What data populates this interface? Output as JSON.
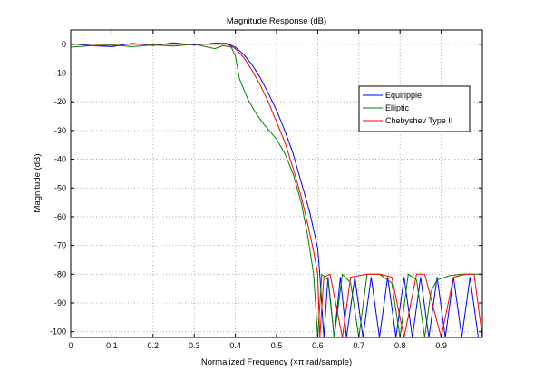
{
  "chart_data": {
    "type": "line",
    "title": "Magnitude Response (dB)",
    "xlabel": "Normalized Frequency  (×π rad/sample)",
    "ylabel": "Magnitude (dB)",
    "xlim": [
      0,
      1
    ],
    "ylim": [
      -102,
      5
    ],
    "grid": true,
    "legend_position": "right",
    "x_ticks": [
      {
        "value": 0,
        "label": "0"
      },
      {
        "value": 0.1,
        "label": "0.1"
      },
      {
        "value": 0.2,
        "label": "0.2"
      },
      {
        "value": 0.3,
        "label": "0.3"
      },
      {
        "value": 0.4,
        "label": "0.4"
      },
      {
        "value": 0.5,
        "label": "0.5"
      },
      {
        "value": 0.6,
        "label": "0.6"
      },
      {
        "value": 0.7,
        "label": "0.7"
      },
      {
        "value": 0.8,
        "label": "0.8"
      },
      {
        "value": 0.9,
        "label": "0.9"
      }
    ],
    "y_ticks": [
      {
        "value": 0,
        "label": "0"
      },
      {
        "value": -10,
        "label": "-10"
      },
      {
        "value": -20,
        "label": "-20"
      },
      {
        "value": -30,
        "label": "-30"
      },
      {
        "value": -40,
        "label": "-40"
      },
      {
        "value": -50,
        "label": "-50"
      },
      {
        "value": -60,
        "label": "-60"
      },
      {
        "value": -70,
        "label": "-70"
      },
      {
        "value": -80,
        "label": "-80"
      },
      {
        "value": -90,
        "label": "-90"
      },
      {
        "value": -100,
        "label": "-100"
      }
    ],
    "series": [
      {
        "name": "Equiripple",
        "color": "#0000ff",
        "x": [
          0,
          0.05,
          0.1,
          0.15,
          0.2,
          0.25,
          0.3,
          0.35,
          0.38,
          0.4,
          0.42,
          0.44,
          0.46,
          0.48,
          0.5,
          0.52,
          0.54,
          0.56,
          0.58,
          0.6,
          0.605,
          0.615,
          0.625,
          0.64,
          0.655,
          0.67,
          0.69,
          0.71,
          0.73,
          0.75,
          0.77,
          0.79,
          0.81,
          0.83,
          0.85,
          0.87,
          0.89,
          0.91,
          0.93,
          0.95,
          0.97,
          0.99,
          1.0
        ],
        "y": [
          0.2,
          -0.5,
          -0.8,
          0.3,
          -0.4,
          0.5,
          -0.3,
          0.4,
          0.3,
          -1,
          -3.5,
          -7,
          -11.5,
          -17,
          -23,
          -30,
          -38,
          -48,
          -58,
          -71,
          -80,
          -102,
          -81,
          -102,
          -81,
          -102,
          -81,
          -102,
          -81,
          -102,
          -81,
          -102,
          -81,
          -102,
          -81,
          -102,
          -81,
          -102,
          -81,
          -102,
          -81,
          -102,
          -102
        ]
      },
      {
        "name": "Elliptic",
        "color": "#008000",
        "x": [
          0,
          0.05,
          0.1,
          0.15,
          0.2,
          0.25,
          0.3,
          0.35,
          0.37,
          0.39,
          0.4,
          0.41,
          0.43,
          0.45,
          0.47,
          0.5,
          0.52,
          0.54,
          0.56,
          0.575,
          0.59,
          0.6,
          0.61,
          0.625,
          0.64,
          0.66,
          0.68,
          0.7,
          0.72,
          0.75,
          0.78,
          0.8,
          0.82,
          0.84,
          0.86,
          0.875,
          0.89,
          0.92,
          0.95,
          0.98,
          1.0
        ],
        "y": [
          -1,
          -0.5,
          -0.3,
          -0.8,
          -0.2,
          -0.6,
          0,
          -1.5,
          -0.5,
          -1,
          -4,
          -12,
          -19,
          -24,
          -28,
          -33,
          -38,
          -45,
          -55,
          -66,
          -80,
          -102,
          -80,
          -82,
          -102,
          -80,
          -83,
          -102,
          -80,
          -80,
          -83,
          -102,
          -80,
          -82,
          -102,
          -86,
          -82,
          -80.5,
          -80,
          -80,
          -80
        ]
      },
      {
        "name": "Chebyshev Type II",
        "color": "#ff0000",
        "x": [
          0,
          0.05,
          0.1,
          0.15,
          0.2,
          0.25,
          0.3,
          0.35,
          0.38,
          0.4,
          0.42,
          0.44,
          0.46,
          0.48,
          0.5,
          0.52,
          0.54,
          0.56,
          0.575,
          0.59,
          0.6,
          0.605,
          0.615,
          0.63,
          0.66,
          0.68,
          0.72,
          0.75,
          0.78,
          0.81,
          0.84,
          0.86,
          0.9,
          0.93,
          0.96,
          0.98,
          1.0
        ],
        "y": [
          0,
          0,
          0,
          0,
          0,
          0,
          0,
          0,
          0,
          -1.5,
          -4.5,
          -9,
          -14,
          -20,
          -27,
          -34,
          -43,
          -53,
          -62,
          -72,
          -80,
          -102,
          -81,
          -80,
          -102,
          -81,
          -80,
          -80,
          -81,
          -102,
          -80,
          -80,
          -102,
          -81,
          -80,
          -80,
          -102
        ]
      }
    ]
  }
}
